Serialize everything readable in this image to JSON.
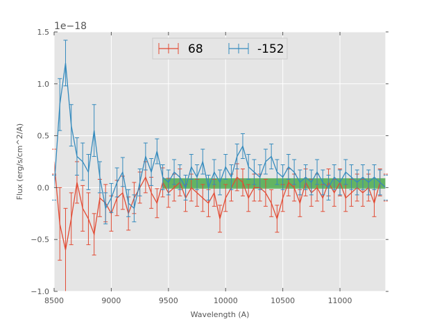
{
  "colors": {
    "background": "#e5e5e5",
    "grid": "#ffffff",
    "series_68": "#e24a33",
    "series_neg152": "#348abd",
    "band": "#2ca02c"
  },
  "chart_data": {
    "type": "line",
    "title": "",
    "xlabel": "Wavelength (A)",
    "ylabel": "Flux (erg/s/cm^2/A)",
    "offset_text": "1e−18",
    "xlim": [
      8500,
      11400
    ],
    "ylim": [
      -1.0,
      1.5
    ],
    "xticks": [
      8500,
      9000,
      9500,
      10000,
      10500,
      11000
    ],
    "xtick_labels": [
      "8500",
      "9000",
      "9500",
      "10000",
      "10500",
      "11000"
    ],
    "yticks": [
      -1.0,
      -0.5,
      0.0,
      0.5,
      1.0,
      1.5
    ],
    "ytick_labels": [
      "−1.0",
      "−0.5",
      "0.0",
      "0.5",
      "1.0",
      "1.5"
    ],
    "grid": true,
    "legend_position": "top-center",
    "band": {
      "x_start": 9450,
      "x_end": 11400,
      "y_low": -0.01,
      "y_high": 0.09
    },
    "series": [
      {
        "name": "68",
        "x": [
          8500,
          8550,
          8600,
          8650,
          8700,
          8750,
          8800,
          8850,
          8900,
          8950,
          9000,
          9050,
          9100,
          9150,
          9200,
          9250,
          9300,
          9350,
          9400,
          9450,
          9500,
          9550,
          9600,
          9650,
          9700,
          9750,
          9800,
          9850,
          9900,
          9950,
          10000,
          10050,
          10100,
          10150,
          10200,
          10250,
          10300,
          10350,
          10400,
          10450,
          10500,
          10550,
          10600,
          10650,
          10700,
          10750,
          10800,
          10850,
          10900,
          10950,
          11000,
          11050,
          11100,
          11150,
          11200,
          11250,
          11300,
          11350,
          11400
        ],
        "y": [
          0.25,
          -0.35,
          -0.6,
          -0.3,
          0.05,
          -0.2,
          -0.3,
          -0.45,
          -0.1,
          -0.15,
          -0.25,
          -0.1,
          -0.05,
          -0.25,
          -0.1,
          0.0,
          0.1,
          -0.05,
          -0.15,
          0.05,
          -0.05,
          0.0,
          0.05,
          -0.1,
          0.0,
          -0.05,
          -0.1,
          -0.15,
          -0.05,
          -0.3,
          -0.1,
          0.0,
          0.1,
          0.05,
          -0.1,
          0.0,
          0.0,
          -0.05,
          -0.15,
          -0.3,
          -0.1,
          0.05,
          0.0,
          -0.15,
          0.05,
          -0.05,
          0.0,
          -0.1,
          0.05,
          -0.05,
          0.05,
          -0.1,
          -0.05,
          0.0,
          -0.05,
          0.0,
          -0.15,
          0.05,
          0.0
        ],
        "err": [
          0.12,
          0.35,
          0.4,
          0.25,
          0.2,
          0.22,
          0.25,
          0.2,
          0.18,
          0.18,
          0.17,
          0.17,
          0.16,
          0.16,
          0.15,
          0.15,
          0.15,
          0.15,
          0.14,
          0.14,
          0.14,
          0.13,
          0.13,
          0.13,
          0.13,
          0.13,
          0.13,
          0.13,
          0.13,
          0.13,
          0.13,
          0.13,
          0.13,
          0.13,
          0.13,
          0.13,
          0.13,
          0.13,
          0.13,
          0.13,
          0.13,
          0.13,
          0.13,
          0.13,
          0.13,
          0.13,
          0.13,
          0.13,
          0.13,
          0.13,
          0.13,
          0.13,
          0.13,
          0.13,
          0.13,
          0.13,
          0.13,
          0.13,
          0.13
        ]
      },
      {
        "name": "-152",
        "x": [
          8500,
          8550,
          8600,
          8650,
          8700,
          8750,
          8800,
          8850,
          8900,
          8950,
          9000,
          9050,
          9100,
          9150,
          9200,
          9250,
          9300,
          9350,
          9400,
          9450,
          9500,
          9550,
          9600,
          9650,
          9700,
          9750,
          9800,
          9850,
          9900,
          9950,
          10000,
          10050,
          10100,
          10150,
          10200,
          10250,
          10300,
          10350,
          10400,
          10450,
          10500,
          10550,
          10600,
          10650,
          10700,
          10750,
          10800,
          10850,
          10900,
          10950,
          11000,
          11050,
          11100,
          11150,
          11200,
          11250,
          11300,
          11350,
          11400
        ],
        "y": [
          0.0,
          0.8,
          1.2,
          0.6,
          0.3,
          0.25,
          0.15,
          0.55,
          0.1,
          -0.2,
          -0.1,
          0.05,
          0.15,
          -0.15,
          -0.2,
          0.05,
          0.3,
          0.15,
          0.35,
          0.1,
          0.05,
          0.15,
          0.1,
          0.0,
          0.2,
          0.1,
          0.25,
          0.0,
          0.15,
          0.05,
          0.2,
          0.1,
          0.3,
          0.4,
          0.2,
          0.15,
          0.1,
          0.25,
          0.3,
          0.15,
          0.1,
          0.2,
          0.15,
          0.05,
          0.1,
          0.05,
          0.15,
          0.05,
          0.0,
          0.1,
          0.05,
          0.15,
          0.1,
          0.05,
          0.1,
          0.05,
          0.1,
          0.05,
          0.0
        ],
        "err": [
          0.12,
          0.25,
          0.22,
          0.2,
          0.18,
          0.18,
          0.17,
          0.25,
          0.15,
          0.15,
          0.14,
          0.14,
          0.14,
          0.13,
          0.13,
          0.13,
          0.13,
          0.13,
          0.12,
          0.12,
          0.12,
          0.12,
          0.12,
          0.12,
          0.12,
          0.12,
          0.12,
          0.12,
          0.12,
          0.12,
          0.12,
          0.12,
          0.12,
          0.12,
          0.12,
          0.12,
          0.12,
          0.12,
          0.12,
          0.12,
          0.12,
          0.12,
          0.12,
          0.12,
          0.12,
          0.12,
          0.12,
          0.12,
          0.12,
          0.12,
          0.12,
          0.12,
          0.12,
          0.12,
          0.12,
          0.12,
          0.12,
          0.12,
          0.12
        ]
      }
    ]
  }
}
